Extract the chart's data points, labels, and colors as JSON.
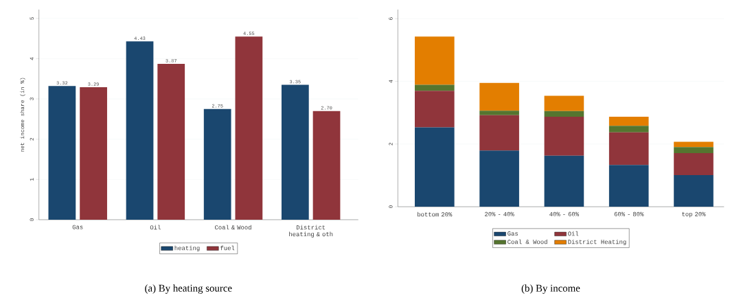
{
  "chart_data": [
    {
      "type": "bar",
      "categories": [
        "Gas",
        "Oil",
        "Coal & Wood",
        "District heating & oth"
      ],
      "ylabel": "net income share (in %)",
      "ylim": [
        0,
        5.22
      ],
      "yticks": [
        0,
        1,
        2,
        3,
        4,
        5
      ],
      "grid": "y",
      "legend": "bottom",
      "annotations": [
        "(a) By heating source"
      ],
      "series": [
        {
          "name": "heating",
          "color": "#1a476f",
          "values": [
            3.32,
            4.43,
            2.75,
            3.35
          ],
          "value_labels": [
            "3.32",
            "4.43",
            "2.75",
            "3.35"
          ]
        },
        {
          "name": "fuel",
          "color": "#90353b",
          "values": [
            3.29,
            3.87,
            4.55,
            2.7
          ],
          "value_labels": [
            "3.29",
            "3.87",
            "4.55",
            "2.70"
          ]
        }
      ]
    },
    {
      "type": "bar",
      "stacked": true,
      "categories": [
        "bottom 20%",
        "20% - 40%",
        "40% - 60%",
        "60% - 80%",
        "top 20%"
      ],
      "ylim": [
        0,
        6.29
      ],
      "yticks": [
        0,
        2,
        4,
        6
      ],
      "grid": "y",
      "legend": "bottom",
      "annotations": [
        "(b) By income"
      ],
      "series": [
        {
          "name": "Gas",
          "color": "#1a476f",
          "values": [
            2.53,
            1.79,
            1.63,
            1.33,
            1.01
          ]
        },
        {
          "name": "Oil",
          "color": "#90353b",
          "values": [
            1.17,
            1.13,
            1.24,
            1.04,
            0.7
          ]
        },
        {
          "name": "Coal & Wood",
          "color": "#55752f",
          "values": [
            0.19,
            0.14,
            0.18,
            0.21,
            0.19
          ]
        },
        {
          "name": "District Heating",
          "color": "#e37e00",
          "values": [
            1.54,
            0.89,
            0.49,
            0.29,
            0.17
          ]
        }
      ]
    }
  ]
}
